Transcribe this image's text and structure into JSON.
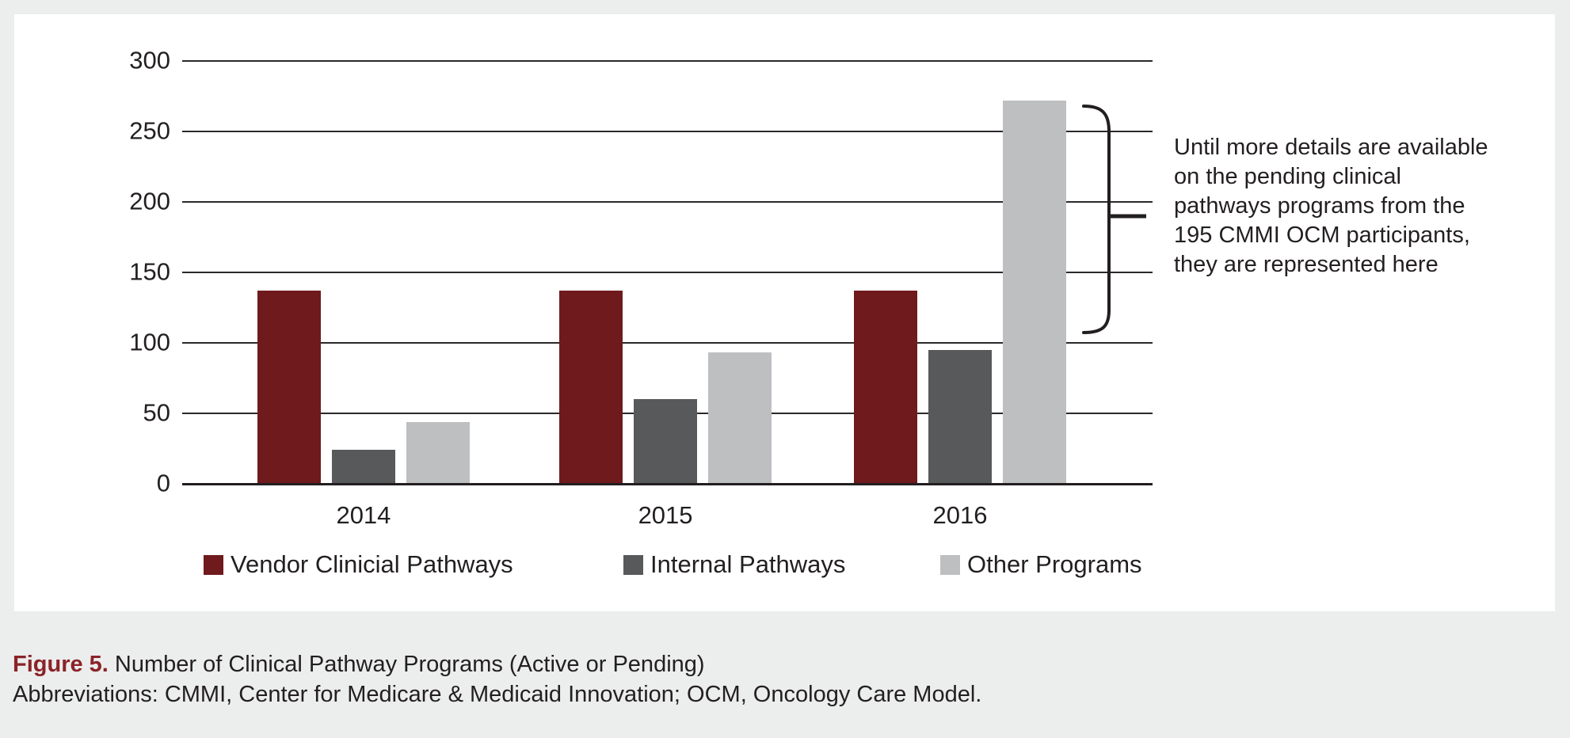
{
  "figure": {
    "caption_label": "Figure 5.",
    "caption_text": "Number of Clinical Pathway Programs (Active or Pending)",
    "abbreviations": "Abbreviations: CMMI, Center for Medicare & Medicaid Innovation; OCM, Oncology Care Model."
  },
  "annotation": {
    "text": "Until more details are available\non the pending clinical\npathways programs from the\n195 CMMI OCM participants,\nthey are represented here"
  },
  "colors": {
    "vendor": "#6F1A1D",
    "internal": "#58595B",
    "other": "#BDBFC1",
    "caption_accent": "#8A2328",
    "grid": "#2B2829",
    "background": "#ECEDED",
    "panel": "#FFFFFF"
  },
  "chart_data": {
    "type": "bar",
    "title": "",
    "xlabel": "",
    "ylabel": "",
    "categories": [
      "2014",
      "2015",
      "2016"
    ],
    "series": [
      {
        "name": "Vendor Clinicial Pathways",
        "color_key": "vendor",
        "values": [
          137,
          137,
          137
        ]
      },
      {
        "name": "Internal Pathways",
        "color_key": "internal",
        "values": [
          24,
          60,
          95
        ]
      },
      {
        "name": "Other Programs",
        "color_key": "other",
        "values": [
          44,
          93,
          272
        ]
      }
    ],
    "y_ticks": [
      300,
      250,
      200,
      150,
      100,
      50,
      0
    ],
    "ylim": [
      0,
      300
    ],
    "grid": true,
    "legend_position": "bottom",
    "annotation_brace_value_range": [
      110,
      270
    ],
    "annotation_brace_tip_value": 190
  }
}
